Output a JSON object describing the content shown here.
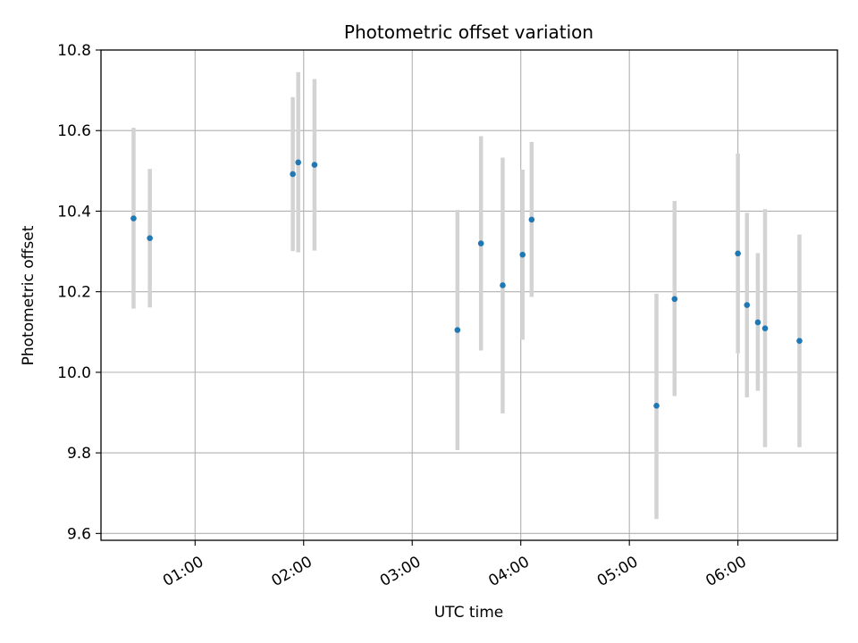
{
  "chart_data": {
    "type": "scatter",
    "title": "Photometric offset variation",
    "xlabel": "UTC time",
    "ylabel": "Photometric offset",
    "x_unit": "hours UTC",
    "xlim": [
      "00:08",
      "06:55"
    ],
    "ylim": [
      9.583,
      10.8
    ],
    "x_ticks": [
      "01:00",
      "02:00",
      "03:00",
      "04:00",
      "05:00",
      "06:00"
    ],
    "y_ticks": [
      "9.6",
      "9.8",
      "10.0",
      "10.2",
      "10.4",
      "10.6",
      "10.8"
    ],
    "grid": true,
    "marker_color": "#1f77b4",
    "errorbar_color": "#d3d3d3",
    "points": [
      {
        "x": "00:26",
        "y": 10.382,
        "ymin": 10.158,
        "ymax": 10.607
      },
      {
        "x": "00:35",
        "y": 10.333,
        "ymin": 10.161,
        "ymax": 10.505
      },
      {
        "x": "01:54",
        "y": 10.492,
        "ymin": 10.301,
        "ymax": 10.683
      },
      {
        "x": "01:57",
        "y": 10.521,
        "ymin": 10.298,
        "ymax": 10.745
      },
      {
        "x": "02:06",
        "y": 10.515,
        "ymin": 10.302,
        "ymax": 10.728
      },
      {
        "x": "03:25",
        "y": 10.105,
        "ymin": 9.807,
        "ymax": 10.403
      },
      {
        "x": "03:38",
        "y": 10.32,
        "ymin": 10.054,
        "ymax": 10.586
      },
      {
        "x": "03:50",
        "y": 10.216,
        "ymin": 9.898,
        "ymax": 10.533
      },
      {
        "x": "04:01",
        "y": 10.292,
        "ymin": 10.081,
        "ymax": 10.503
      },
      {
        "x": "04:06",
        "y": 10.379,
        "ymin": 10.187,
        "ymax": 10.572
      },
      {
        "x": "05:15",
        "y": 9.917,
        "ymin": 9.636,
        "ymax": 10.195
      },
      {
        "x": "05:25",
        "y": 10.182,
        "ymin": 9.941,
        "ymax": 10.425
      },
      {
        "x": "06:00",
        "y": 10.295,
        "ymin": 10.047,
        "ymax": 10.543
      },
      {
        "x": "06:05",
        "y": 10.167,
        "ymin": 9.938,
        "ymax": 10.396
      },
      {
        "x": "06:11",
        "y": 10.124,
        "ymin": 9.954,
        "ymax": 10.296
      },
      {
        "x": "06:15",
        "y": 10.109,
        "ymin": 9.814,
        "ymax": 10.405
      },
      {
        "x": "06:34",
        "y": 10.078,
        "ymin": 9.814,
        "ymax": 10.342
      }
    ]
  }
}
